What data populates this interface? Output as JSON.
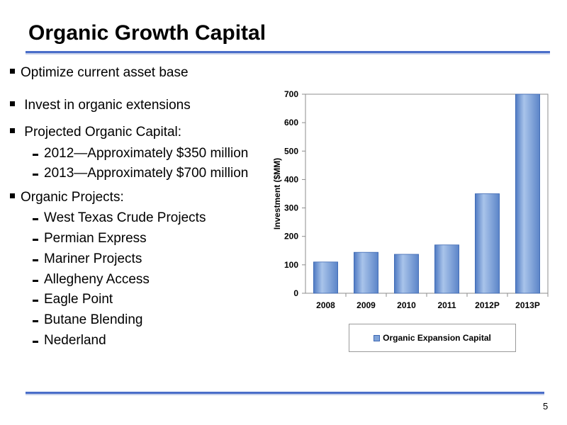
{
  "slide": {
    "title": "Organic Growth Capital",
    "page_number": "5"
  },
  "bullets": [
    {
      "level": 1,
      "text": "Optimize current asset base"
    },
    {
      "level": 1,
      "text": " Invest in organic extensions"
    },
    {
      "level": 1,
      "text": " Projected Organic Capital:"
    },
    {
      "level": 2,
      "text": "2012—Approximately $350 million"
    },
    {
      "level": 2,
      "text": "2013—Approximately $700 million"
    },
    {
      "level": 1,
      "text": "Organic Projects:"
    },
    {
      "level": 2,
      "text": "West Texas Crude Projects"
    },
    {
      "level": 2,
      "text": "Permian Express"
    },
    {
      "level": 2,
      "text": "Mariner Projects"
    },
    {
      "level": 2,
      "text": "Allegheny Access"
    },
    {
      "level": 2,
      "text": "Eagle Point"
    },
    {
      "level": 2,
      "text": "Butane Blending"
    },
    {
      "level": 2,
      "text": "Nederland"
    }
  ],
  "colors": {
    "accent_rule": "#4a6ec9",
    "bar_fill": "#7fa3d8",
    "bar_stroke": "#3d68b3"
  },
  "chart_data": {
    "type": "bar",
    "categories": [
      "2008",
      "2009",
      "2010",
      "2011",
      "2012P",
      "2013P"
    ],
    "series": [
      {
        "name": "Organic Expansion Capital",
        "values": [
          110,
          144,
          137,
          170,
          350,
          700
        ]
      }
    ],
    "ylabel": "Investment ($MM)",
    "xlabel": "",
    "ylim": [
      0,
      700
    ],
    "yticks": [
      0,
      100,
      200,
      300,
      400,
      500,
      600,
      700
    ],
    "grid": false,
    "legend": "bottom"
  }
}
